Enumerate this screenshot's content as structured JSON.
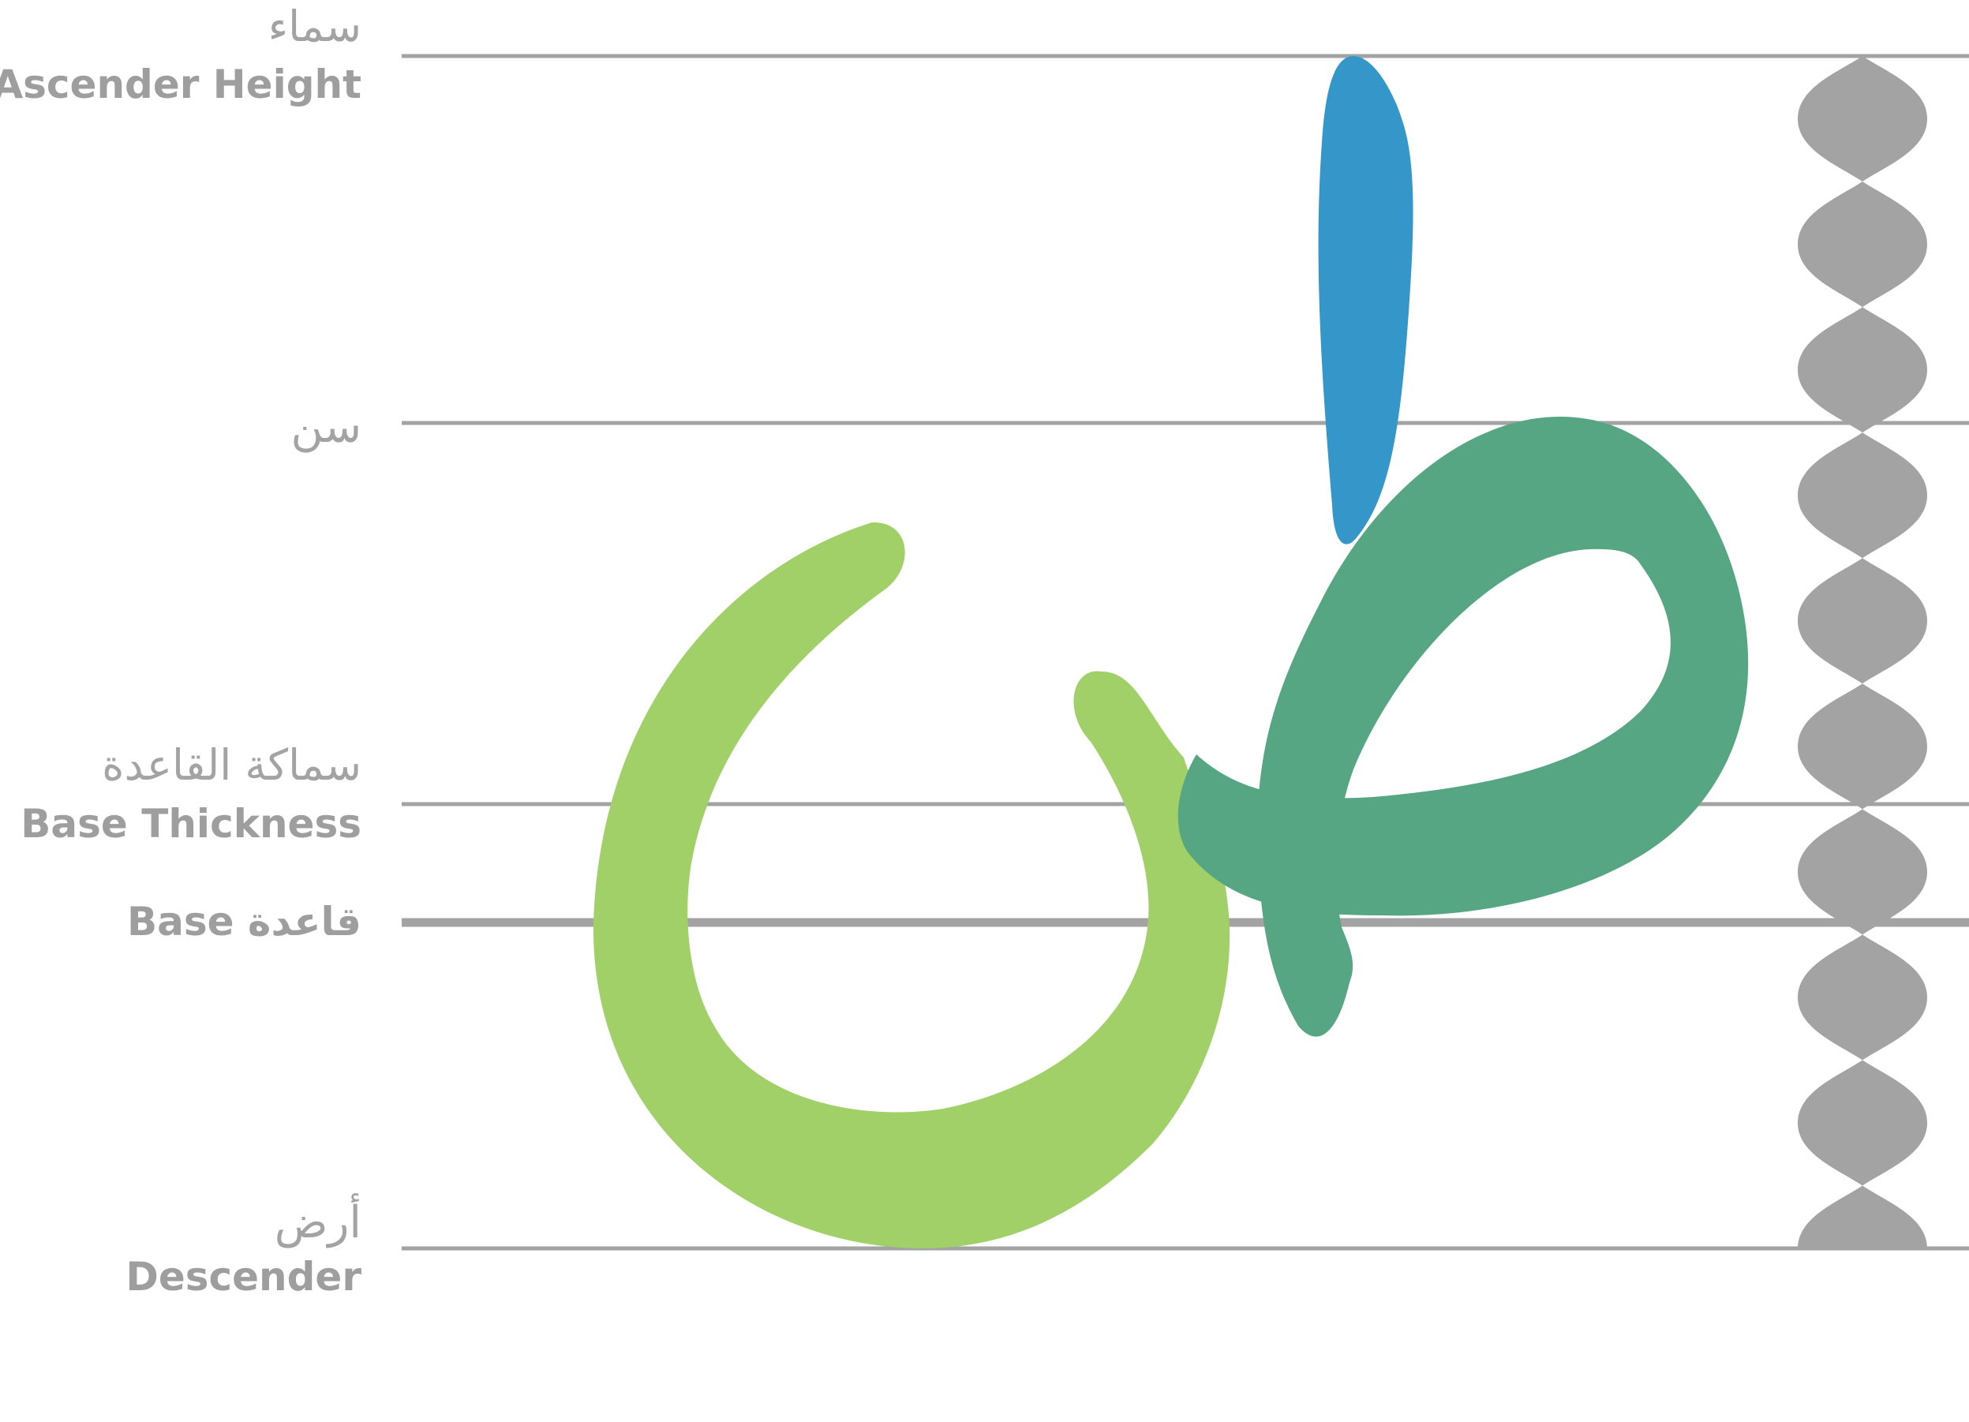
{
  "labels": {
    "ascender_ar": "سماء",
    "ascender_en": "Ascender Height",
    "tooth_ar": "سن",
    "thickness_ar": "سماكة القاعدة",
    "thickness_en": "Base Thickness",
    "base_combined": "Base قاعدة",
    "descender_ar": "أرض",
    "descender_en": "Descender"
  },
  "colors": {
    "guide_line": "#a3a3a3",
    "dot_column": "#a3a3a3",
    "alef_stroke": "#3597c9",
    "ta_body": "#56a684",
    "noon_body": "#a1d068"
  },
  "dot_count": 10
}
